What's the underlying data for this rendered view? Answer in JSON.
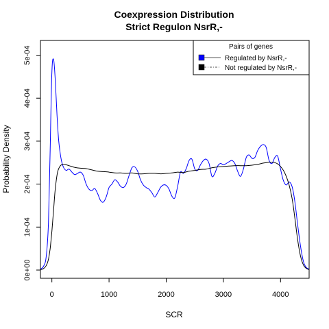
{
  "chart_data": {
    "type": "line",
    "title": "Coexpression Distribution",
    "subtitle": "Strict Regulon NsrR,-",
    "xlabel": "SCR",
    "ylabel": "Probability Density",
    "xlim": [
      -200,
      4500
    ],
    "ylim": [
      0,
      0.00052
    ],
    "xticks": [
      0,
      1000,
      2000,
      3000,
      4000
    ],
    "xtick_labels": [
      "0",
      "1000",
      "2000",
      "3000",
      "4000"
    ],
    "yticks": [
      0,
      0.0001,
      0.0002,
      0.0003,
      0.0004,
      0.0005
    ],
    "ytick_labels": [
      "0e+00",
      "1e-04",
      "2e-04",
      "3e-04",
      "4e-04",
      "5e-04"
    ],
    "grid": false,
    "legend": {
      "title": "Pairs of genes",
      "position": "top-right",
      "entries": [
        {
          "label": "Regulated by  NsrR,-",
          "color": "#0000ff"
        },
        {
          "label": "Not regulated by  NsrR,-",
          "color": "#000000"
        }
      ]
    },
    "series": [
      {
        "name": "Regulated by  NsrR,-",
        "color": "#0000ff",
        "x": [
          -200,
          -150,
          -100,
          -60,
          -30,
          0,
          30,
          60,
          90,
          120,
          160,
          200,
          250,
          300,
          350,
          400,
          450,
          500,
          550,
          600,
          650,
          700,
          750,
          800,
          850,
          900,
          950,
          1000,
          1050,
          1100,
          1150,
          1200,
          1250,
          1300,
          1350,
          1400,
          1450,
          1500,
          1550,
          1600,
          1650,
          1700,
          1750,
          1800,
          1850,
          1900,
          1950,
          2000,
          2050,
          2100,
          2150,
          2200,
          2250,
          2300,
          2350,
          2400,
          2450,
          2500,
          2550,
          2600,
          2650,
          2700,
          2750,
          2800,
          2850,
          2900,
          2950,
          3000,
          3050,
          3100,
          3150,
          3200,
          3250,
          3300,
          3350,
          3400,
          3450,
          3500,
          3550,
          3600,
          3650,
          3700,
          3750,
          3800,
          3850,
          3900,
          3950,
          4000,
          4050,
          4100,
          4150,
          4200,
          4250,
          4300,
          4350,
          4400,
          4450,
          4500
        ],
        "y": [
          2e-06,
          8e-06,
          3e-05,
          0.00011,
          0.00028,
          0.00046,
          0.00049,
          0.00044,
          0.00036,
          0.0003,
          0.00026,
          0.00024,
          0.000232,
          0.000235,
          0.000228,
          0.000222,
          0.000225,
          0.000228,
          0.00022,
          0.0002,
          0.000188,
          0.000185,
          0.00019,
          0.000178,
          0.000162,
          0.000158,
          0.00017,
          0.000192,
          0.0002,
          0.00021,
          0.000205,
          0.000195,
          0.000192,
          0.0002,
          0.00022,
          0.000238,
          0.00024,
          0.00023,
          0.00021,
          0.000198,
          0.000192,
          0.000188,
          0.00018,
          0.00017,
          0.00018,
          0.000192,
          0.000198,
          0.000197,
          0.000188,
          0.000172,
          0.000168,
          0.000195,
          0.000228,
          0.000225,
          0.000236,
          0.000255,
          0.000258,
          0.000235,
          0.000232,
          0.000245,
          0.000255,
          0.000258,
          0.000248,
          0.000218,
          0.000225,
          0.000242,
          0.000248,
          0.000245,
          0.000248,
          0.000252,
          0.000255,
          0.000248,
          0.00023,
          0.000218,
          0.000235,
          0.000262,
          0.000268,
          0.00026,
          0.000262,
          0.000278,
          0.000288,
          0.000292,
          0.000285,
          0.000255,
          0.000248,
          0.000262,
          0.000265,
          0.000235,
          0.000208,
          0.000198,
          0.000205,
          0.000195,
          0.00016,
          0.000105,
          5.5e-05,
          2e-05,
          6e-06,
          2e-06
        ]
      },
      {
        "name": "Not regulated by  NsrR,-",
        "color": "#000000",
        "x": [
          -200,
          -150,
          -100,
          -60,
          -30,
          0,
          30,
          60,
          100,
          150,
          200,
          250,
          300,
          400,
          500,
          600,
          700,
          800,
          900,
          1000,
          1100,
          1200,
          1300,
          1400,
          1500,
          1600,
          1700,
          1800,
          1900,
          2000,
          2100,
          2200,
          2300,
          2400,
          2500,
          2600,
          2700,
          2800,
          2900,
          3000,
          3100,
          3200,
          3300,
          3400,
          3500,
          3600,
          3700,
          3800,
          3850,
          3900,
          3950,
          4000,
          4050,
          4100,
          4150,
          4200,
          4250,
          4300,
          4350,
          4400,
          4450,
          4500
        ],
        "y": [
          1e-06,
          3e-06,
          1e-05,
          2.5e-05,
          5e-05,
          9e-05,
          0.00014,
          0.00019,
          0.000228,
          0.000243,
          0.000246,
          0.000245,
          0.000243,
          0.000239,
          0.000237,
          0.000236,
          0.000233,
          0.00023,
          0.000229,
          0.000228,
          0.000226,
          0.000226,
          0.000225,
          0.000226,
          0.000224,
          0.000224,
          0.000225,
          0.000225,
          0.000224,
          0.000225,
          0.000226,
          0.000228,
          0.000227,
          0.00023,
          0.000232,
          0.000234,
          0.000235,
          0.000238,
          0.00024,
          0.000241,
          0.000242,
          0.000243,
          0.000243,
          0.000243,
          0.000244,
          0.000246,
          0.000249,
          0.000251,
          0.000251,
          0.00025,
          0.000247,
          0.000241,
          0.000232,
          0.000218,
          0.000198,
          0.000168,
          0.000122,
          7e-05,
          3.2e-05,
          1.2e-05,
          4e-06,
          1e-06
        ]
      }
    ]
  }
}
